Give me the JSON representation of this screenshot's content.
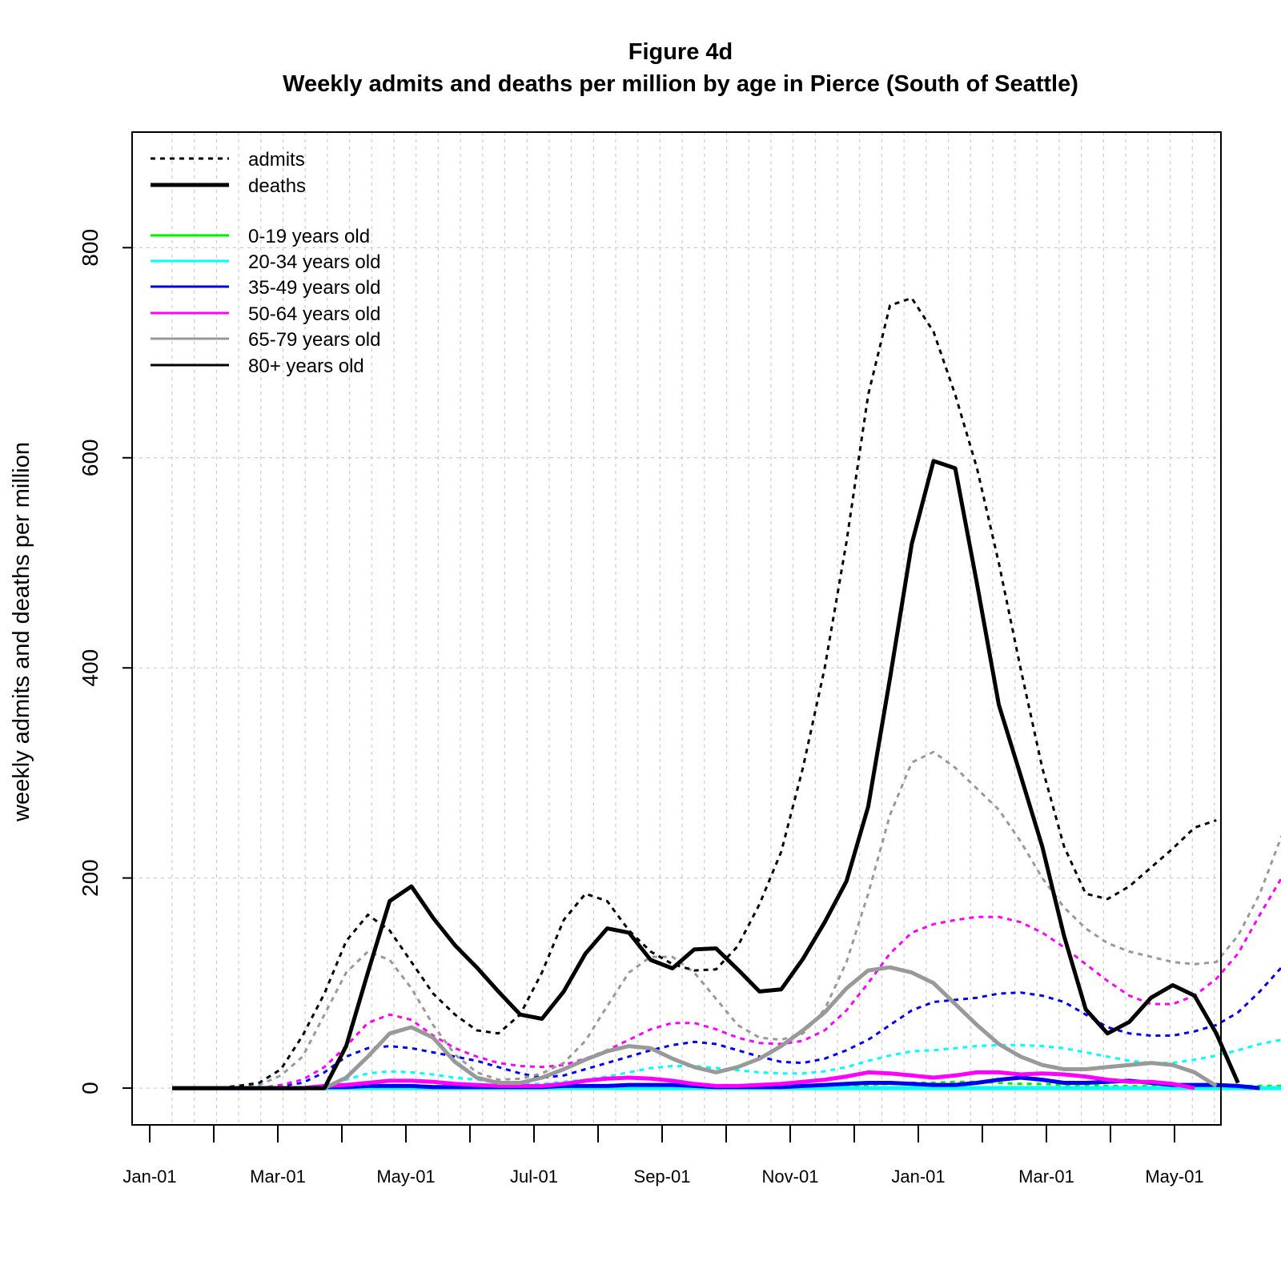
{
  "chart_data": {
    "type": "line",
    "title": "Figure 4d",
    "subtitle": "Weekly admits and deaths per million by age in Pierce (South of Seattle)",
    "xlabel": "",
    "ylabel": "weekly admits and deaths per million",
    "x_tick_labels": [
      "Jan-01",
      "Mar-01",
      "May-01",
      "Jul-01",
      "Sep-01",
      "Nov-01",
      "Jan-01",
      "Mar-01",
      "May-01"
    ],
    "y_ticks": [
      0,
      200,
      400,
      600,
      800
    ],
    "ylim": [
      -35,
      910
    ],
    "grid": true,
    "legend_placement": "top-left",
    "legend_style": [
      {
        "label": "admits",
        "line": "dotted"
      },
      {
        "label": "deaths",
        "line": "solid"
      }
    ],
    "legend_age": [
      {
        "label": "0-19 years old",
        "color": "#00ee00"
      },
      {
        "label": "20-34 years old",
        "color": "#00ffff"
      },
      {
        "label": "35-49 years old",
        "color": "#0000ee"
      },
      {
        "label": "50-64 years old",
        "color": "#ff00ff"
      },
      {
        "label": "65-79 years old",
        "color": "#999999"
      },
      {
        "label": "80+ years old",
        "color": "#000000"
      }
    ],
    "series": [
      {
        "name": "0-19 years old",
        "measure": "admits",
        "color": "#00ee00",
        "values": [
          0,
          0,
          0,
          0,
          0,
          0,
          1,
          1,
          1,
          1,
          1,
          1,
          1,
          0,
          0,
          0,
          0,
          0,
          0,
          1,
          1,
          1,
          2,
          2,
          1,
          1,
          1,
          1,
          1,
          1,
          2,
          2,
          3,
          4,
          5,
          5,
          6,
          6,
          5,
          4,
          4,
          3,
          3,
          2,
          2,
          2,
          2,
          2,
          2,
          2,
          2,
          2,
          1,
          1,
          1,
          1,
          1,
          1,
          1,
          1,
          1,
          1,
          1
        ]
      },
      {
        "name": "20-34 years old",
        "measure": "admits",
        "color": "#00ffff",
        "values": [
          0,
          0,
          0,
          0,
          0,
          0,
          1,
          2,
          8,
          14,
          16,
          15,
          13,
          10,
          8,
          5,
          4,
          4,
          6,
          8,
          11,
          15,
          19,
          21,
          21,
          19,
          17,
          15,
          14,
          14,
          16,
          20,
          26,
          31,
          35,
          36,
          38,
          40,
          41,
          41,
          40,
          38,
          34,
          30,
          26,
          24,
          24,
          27,
          31,
          36,
          42,
          46,
          47,
          46,
          44
        ]
      },
      {
        "name": "35-49 years old",
        "measure": "admits",
        "color": "#0000ee",
        "values": [
          0,
          0,
          0,
          0,
          0,
          2,
          5,
          15,
          30,
          38,
          40,
          38,
          34,
          30,
          26,
          20,
          14,
          10,
          12,
          18,
          24,
          30,
          36,
          41,
          44,
          42,
          36,
          30,
          25,
          24,
          28,
          36,
          46,
          60,
          74,
          82,
          84,
          86,
          90,
          91,
          88,
          82,
          70,
          58,
          52,
          50,
          50,
          54,
          60,
          72,
          92,
          115,
          138,
          148
        ]
      },
      {
        "name": "50-64 years old",
        "measure": "admits",
        "color": "#ff00ff",
        "values": [
          0,
          0,
          0,
          0,
          0,
          3,
          8,
          20,
          40,
          62,
          70,
          65,
          50,
          38,
          30,
          24,
          21,
          20,
          22,
          28,
          36,
          46,
          56,
          62,
          62,
          56,
          48,
          43,
          42,
          45,
          55,
          74,
          100,
          128,
          148,
          156,
          160,
          163,
          163,
          158,
          148,
          134,
          118,
          102,
          88,
          80,
          80,
          88,
          104,
          128,
          165,
          200,
          230
        ]
      },
      {
        "name": "65-79 years old",
        "measure": "admits",
        "color": "#999999",
        "values": [
          0,
          0,
          0,
          0,
          3,
          12,
          30,
          70,
          110,
          130,
          122,
          95,
          60,
          32,
          15,
          8,
          9,
          14,
          24,
          45,
          78,
          110,
          125,
          125,
          110,
          85,
          60,
          48,
          46,
          52,
          75,
          120,
          185,
          260,
          310,
          320,
          305,
          285,
          265,
          235,
          200,
          172,
          152,
          138,
          130,
          125,
          120,
          118,
          120,
          145,
          185,
          240
        ]
      },
      {
        "name": "80+ years old",
        "measure": "admits",
        "color": "#000000",
        "values": [
          0,
          0,
          0,
          2,
          5,
          18,
          50,
          90,
          140,
          165,
          150,
          120,
          90,
          70,
          55,
          52,
          70,
          110,
          160,
          185,
          178,
          150,
          130,
          118,
          112,
          113,
          135,
          175,
          225,
          305,
          400,
          520,
          660,
          745,
          752,
          720,
          660,
          590,
          500,
          400,
          305,
          230,
          185,
          180,
          192,
          210,
          228,
          248,
          255
        ]
      },
      {
        "name": "0-19 years old",
        "measure": "deaths",
        "color": "#00ee00",
        "values": [
          0,
          0,
          0,
          0,
          0,
          0,
          0,
          0,
          0,
          0,
          0,
          0,
          0,
          0,
          0,
          0,
          0,
          0,
          0,
          0,
          0,
          0,
          0,
          0,
          0,
          0,
          0,
          0,
          0,
          0,
          0,
          0,
          0,
          0,
          0,
          0,
          0,
          0,
          0,
          0,
          0,
          0,
          0,
          0,
          0,
          0,
          0,
          0,
          0,
          0,
          0,
          0,
          0,
          0,
          0
        ]
      },
      {
        "name": "20-34 years old",
        "measure": "deaths",
        "color": "#00ffff",
        "values": [
          0,
          0,
          0,
          0,
          0,
          0,
          0,
          0,
          0,
          0,
          0,
          0,
          0,
          0,
          0,
          0,
          0,
          0,
          0,
          0,
          0,
          0,
          0,
          0,
          0,
          0,
          0,
          0,
          0,
          0,
          0,
          0,
          0,
          0,
          0,
          0,
          0,
          0,
          0,
          0,
          0,
          0,
          0,
          0,
          0,
          0,
          0,
          0,
          0,
          0,
          0,
          0,
          0,
          0,
          0
        ]
      },
      {
        "name": "35-49 years old",
        "measure": "deaths",
        "color": "#0000ee",
        "values": [
          0,
          0,
          0,
          0,
          0,
          0,
          0,
          1,
          1,
          2,
          2,
          2,
          1,
          1,
          1,
          1,
          1,
          1,
          2,
          2,
          2,
          3,
          3,
          3,
          2,
          1,
          1,
          1,
          1,
          2,
          3,
          4,
          5,
          5,
          4,
          3,
          3,
          5,
          8,
          10,
          8,
          5,
          5,
          6,
          7,
          5,
          3,
          3,
          3,
          2,
          0
        ]
      },
      {
        "name": "50-64 years old",
        "measure": "deaths",
        "color": "#ff00ff",
        "values": [
          0,
          0,
          0,
          0,
          0,
          0,
          0,
          2,
          3,
          5,
          7,
          7,
          6,
          4,
          3,
          2,
          2,
          2,
          4,
          7,
          9,
          10,
          9,
          7,
          4,
          2,
          2,
          3,
          4,
          6,
          8,
          11,
          15,
          14,
          12,
          10,
          12,
          15,
          15,
          13,
          14,
          13,
          11,
          8,
          6,
          6,
          4,
          0
        ]
      },
      {
        "name": "65-79 years old",
        "measure": "deaths",
        "color": "#999999",
        "values": [
          0,
          0,
          0,
          0,
          0,
          0,
          0,
          0,
          10,
          30,
          52,
          58,
          48,
          25,
          10,
          5,
          5,
          10,
          18,
          27,
          35,
          40,
          38,
          28,
          20,
          15,
          20,
          28,
          40,
          55,
          72,
          95,
          112,
          115,
          110,
          100,
          80,
          60,
          42,
          30,
          22,
          18,
          18,
          20,
          22,
          24,
          22,
          15,
          2
        ]
      },
      {
        "name": "80+ years old",
        "measure": "deaths",
        "color": "#000000",
        "values": [
          0,
          0,
          0,
          0,
          0,
          0,
          0,
          0,
          40,
          110,
          178,
          192,
          162,
          136,
          115,
          92,
          70,
          66,
          92,
          128,
          152,
          148,
          122,
          114,
          132,
          133,
          113,
          92,
          94,
          123,
          158,
          197,
          268,
          390,
          518,
          597,
          590,
          480,
          365,
          298,
          230,
          145,
          75,
          52,
          63,
          86,
          98,
          88,
          52,
          5
        ]
      }
    ]
  }
}
